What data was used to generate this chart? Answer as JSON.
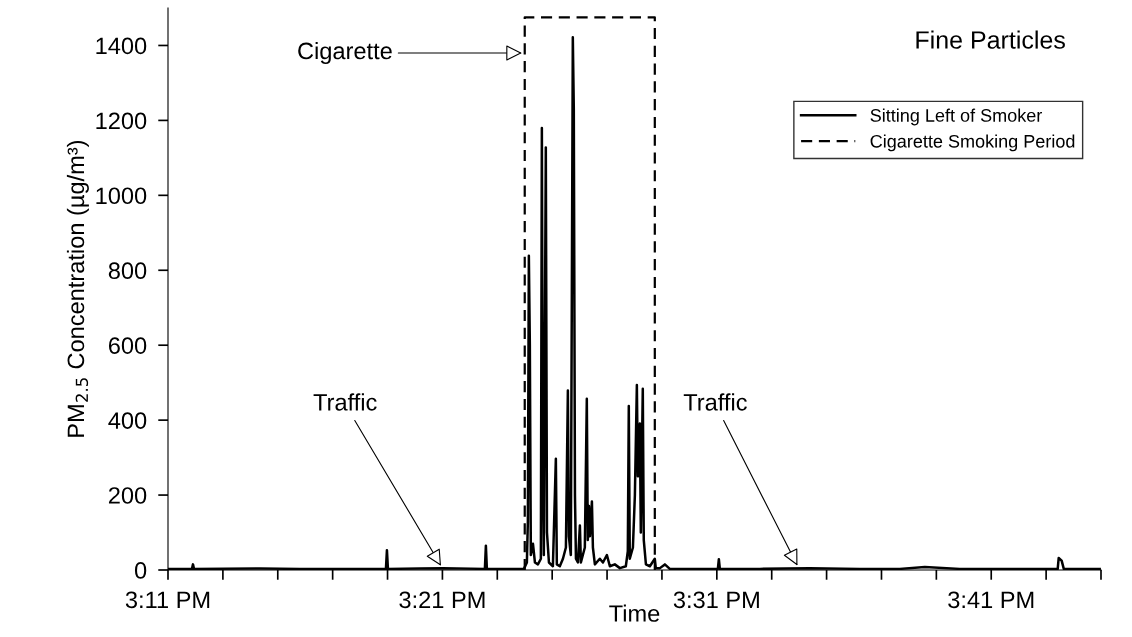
{
  "chart_data": {
    "type": "line",
    "title": "Fine Particles",
    "xlabel": "Time",
    "ylabel": "PM$_{2.5}$ Concentration (µg/m³)",
    "xlim": [
      15.18333,
      15.75
    ],
    "ylim": [
      0,
      1500
    ],
    "xticks": [
      {
        "value": 15.18333,
        "label": "3:11 PM"
      },
      {
        "value": 15.21667,
        "label": null
      },
      {
        "value": 15.25,
        "label": null
      },
      {
        "value": 15.28333,
        "label": null
      },
      {
        "value": 15.31667,
        "label": null
      },
      {
        "value": 15.35,
        "label": "3:21 PM"
      },
      {
        "value": 15.38333,
        "label": null
      },
      {
        "value": 15.41667,
        "label": null
      },
      {
        "value": 15.45,
        "label": null
      },
      {
        "value": 15.48333,
        "label": null
      },
      {
        "value": 15.51667,
        "label": "3:31 PM"
      },
      {
        "value": 15.55,
        "label": null
      },
      {
        "value": 15.58333,
        "label": null
      },
      {
        "value": 15.61667,
        "label": null
      },
      {
        "value": 15.65,
        "label": null
      },
      {
        "value": 15.68333,
        "label": "3:41 PM"
      },
      {
        "value": 15.71667,
        "label": null
      },
      {
        "value": 15.75,
        "label": null
      }
    ],
    "yticks": [
      0,
      200,
      400,
      600,
      800,
      1000,
      1200,
      1400
    ],
    "grid": false,
    "legend": "top right",
    "series": [
      {
        "name": "Sitting Left of Smoker",
        "color": "#000000",
        "line_style": "solid",
        "x": [
          15.18333,
          15.1979,
          15.1985,
          15.1991,
          15.2392,
          15.2635,
          15.3157,
          15.3163,
          15.3169,
          15.3363,
          15.3503,
          15.3758,
          15.3764,
          15.377,
          15.3995,
          15.4013,
          15.4019,
          15.4025,
          15.4031,
          15.4037,
          15.405,
          15.4062,
          15.408,
          15.4098,
          15.4104,
          15.411,
          15.4116,
          15.4128,
          15.4135,
          15.4147,
          15.4171,
          15.4189,
          15.4195,
          15.4213,
          15.4232,
          15.425,
          15.4262,
          15.4268,
          15.428,
          15.4292,
          15.4298,
          15.4305,
          15.4311,
          15.4323,
          15.4335,
          15.4341,
          15.4353,
          15.4365,
          15.4377,
          15.4383,
          15.439,
          15.4396,
          15.4408,
          15.4414,
          15.4426,
          15.4456,
          15.4475,
          15.4499,
          15.4517,
          15.4547,
          15.4578,
          15.4614,
          15.4626,
          15.4632,
          15.4638,
          15.4657,
          15.4669,
          15.4681,
          15.4687,
          15.4699,
          15.4705,
          15.4717,
          15.4723,
          15.4736,
          15.476,
          15.479,
          15.4796,
          15.4821,
          15.4851,
          15.4881,
          15.5063,
          15.5173,
          15.5179,
          15.5185,
          15.5428,
          15.5731,
          15.6035,
          15.6278,
          15.643,
          15.6642,
          15.6885,
          15.7237,
          15.7243,
          15.7261,
          15.7274,
          15.7492
        ],
        "values": [
          3,
          3,
          15,
          3,
          4,
          3,
          3,
          53,
          3,
          4,
          5,
          3,
          65,
          3,
          3,
          20,
          130,
          839,
          602,
          40,
          70,
          20,
          15,
          30,
          1180,
          300,
          40,
          1128,
          100,
          20,
          10,
          297,
          15,
          10,
          30,
          60,
          479,
          90,
          40,
          1422,
          1231,
          200,
          30,
          20,
          119,
          20,
          40,
          60,
          457,
          80,
          171,
          90,
          183,
          60,
          15,
          30,
          20,
          40,
          10,
          15,
          5,
          10,
          50,
          438,
          30,
          60,
          200,
          494,
          250,
          391,
          100,
          484,
          80,
          15,
          10,
          30,
          5,
          5,
          15,
          3,
          3,
          3,
          29,
          3,
          3,
          5,
          3,
          3,
          8,
          3,
          3,
          3,
          32,
          25,
          3,
          3
        ]
      },
      {
        "name": "Cigarette Smoking Period",
        "color": "#000000",
        "line_style": "dashed",
        "x": [
          15.4,
          15.4,
          15.479,
          15.479
        ],
        "values": [
          0,
          1475,
          1475,
          0
        ]
      }
    ],
    "annotations": [
      {
        "text": "Cigarette",
        "x": 15.4,
        "y": 1380
      },
      {
        "text": "Traffic",
        "x": 15.35,
        "y": 5
      },
      {
        "text": "Traffic",
        "x": 15.5664,
        "y": 5
      }
    ]
  }
}
